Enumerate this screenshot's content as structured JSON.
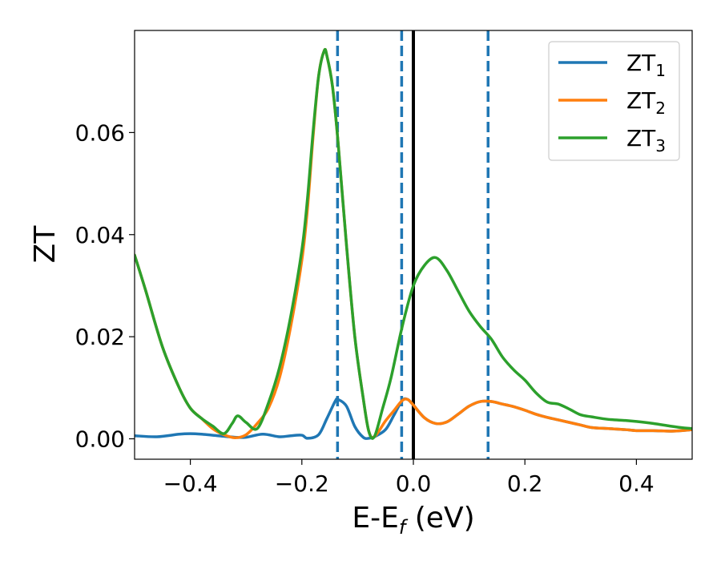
{
  "chart_data": {
    "type": "line",
    "xlabel": "E-E",
    "xlabel_sub": "f",
    "xlabel_unit": " (eV)",
    "ylabel": "ZT",
    "xlim": [
      -0.5,
      0.5
    ],
    "ylim": [
      -0.004,
      0.08
    ],
    "x_ticks": [
      -0.4,
      -0.2,
      0.0,
      0.2,
      0.4
    ],
    "x_tick_labels": [
      "−0.4",
      "−0.2",
      "0.0",
      "0.2",
      "0.4"
    ],
    "y_ticks": [
      0.0,
      0.02,
      0.04,
      0.06
    ],
    "y_tick_labels": [
      "0.00",
      "0.02",
      "0.04",
      "0.06"
    ],
    "grid": false,
    "legend_position": "top-right",
    "vertical_lines": [
      {
        "x": -0.136,
        "style": "dashed",
        "color": "#1f77b4"
      },
      {
        "x": -0.021,
        "style": "dashed",
        "color": "#1f77b4"
      },
      {
        "x": 0.0,
        "style": "solid",
        "color": "#000000"
      },
      {
        "x": 0.134,
        "style": "dashed",
        "color": "#1f77b4"
      }
    ],
    "series": [
      {
        "name": "ZT",
        "name_sub": "1",
        "color": "#1f77b4",
        "x": [
          -0.5,
          -0.46,
          -0.42,
          -0.4,
          -0.38,
          -0.35,
          -0.32,
          -0.3,
          -0.27,
          -0.24,
          -0.22,
          -0.2,
          -0.19,
          -0.17,
          -0.155,
          -0.14,
          -0.135,
          -0.12,
          -0.105,
          -0.09,
          -0.08,
          -0.07,
          -0.05,
          -0.035,
          -0.02,
          -0.01,
          0.0,
          0.02,
          0.04,
          0.06,
          0.08,
          0.1,
          0.12,
          0.14,
          0.16,
          0.18,
          0.2,
          0.22,
          0.24,
          0.26,
          0.28,
          0.3,
          0.32,
          0.35,
          0.38,
          0.4,
          0.43,
          0.46,
          0.48,
          0.5
        ],
        "y": [
          0.0006,
          0.0004,
          0.0009,
          0.001,
          0.0009,
          0.0006,
          0.0003,
          0.0003,
          0.0009,
          0.0004,
          0.0006,
          0.0007,
          0.0001,
          0.0008,
          0.004,
          0.0074,
          0.0077,
          0.0064,
          0.0024,
          0.0003,
          0.0001,
          0.0004,
          0.0018,
          0.0046,
          0.0075,
          0.0077,
          0.0066,
          0.0041,
          0.003,
          0.0033,
          0.0048,
          0.0064,
          0.0073,
          0.0073,
          0.0068,
          0.0063,
          0.0056,
          0.0048,
          0.0042,
          0.0037,
          0.0032,
          0.0027,
          0.0022,
          0.002,
          0.0018,
          0.0016,
          0.0016,
          0.0015,
          0.0016,
          0.0018
        ]
      },
      {
        "name": "ZT",
        "name_sub": "2",
        "color": "#ff7f0e",
        "x": [
          -0.5,
          -0.48,
          -0.45,
          -0.42,
          -0.4,
          -0.38,
          -0.36,
          -0.34,
          -0.32,
          -0.3,
          -0.28,
          -0.26,
          -0.24,
          -0.22,
          -0.2,
          -0.19,
          -0.18,
          -0.17,
          -0.16,
          -0.155,
          -0.145,
          -0.135,
          -0.12,
          -0.105,
          -0.09,
          -0.08,
          -0.07,
          -0.05,
          -0.035,
          -0.02,
          -0.01,
          0.0,
          0.02,
          0.04,
          0.06,
          0.08,
          0.1,
          0.12,
          0.14,
          0.16,
          0.18,
          0.2,
          0.22,
          0.24,
          0.26,
          0.28,
          0.3,
          0.32,
          0.35,
          0.38,
          0.4,
          0.43,
          0.46,
          0.48,
          0.5
        ],
        "y": [
          0.036,
          0.029,
          0.018,
          0.01,
          0.006,
          0.004,
          0.002,
          0.0008,
          0.0002,
          0.0008,
          0.003,
          0.006,
          0.012,
          0.022,
          0.035,
          0.045,
          0.059,
          0.071,
          0.076,
          0.075,
          0.069,
          0.058,
          0.038,
          0.02,
          0.008,
          0.0015,
          0.0004,
          0.0035,
          0.0055,
          0.0075,
          0.0077,
          0.0066,
          0.0041,
          0.003,
          0.0033,
          0.0048,
          0.0064,
          0.0073,
          0.0073,
          0.0068,
          0.0063,
          0.0056,
          0.0048,
          0.0042,
          0.0037,
          0.0032,
          0.0027,
          0.0022,
          0.002,
          0.0018,
          0.0016,
          0.0016,
          0.0015,
          0.0016,
          0.0018
        ]
      },
      {
        "name": "ZT",
        "name_sub": "3",
        "color": "#2ca02c",
        "x": [
          -0.5,
          -0.48,
          -0.45,
          -0.42,
          -0.4,
          -0.38,
          -0.36,
          -0.34,
          -0.325,
          -0.315,
          -0.3,
          -0.28,
          -0.26,
          -0.24,
          -0.22,
          -0.2,
          -0.19,
          -0.18,
          -0.17,
          -0.16,
          -0.155,
          -0.145,
          -0.135,
          -0.12,
          -0.105,
          -0.09,
          -0.08,
          -0.07,
          -0.055,
          -0.04,
          -0.02,
          0.0,
          0.02,
          0.04,
          0.06,
          0.08,
          0.1,
          0.12,
          0.14,
          0.16,
          0.18,
          0.2,
          0.22,
          0.24,
          0.26,
          0.28,
          0.3,
          0.32,
          0.35,
          0.38,
          0.4,
          0.43,
          0.46,
          0.48,
          0.5
        ],
        "y": [
          0.036,
          0.029,
          0.018,
          0.01,
          0.006,
          0.004,
          0.0025,
          0.001,
          0.003,
          0.0045,
          0.0032,
          0.002,
          0.007,
          0.014,
          0.024,
          0.037,
          0.047,
          0.06,
          0.071,
          0.076,
          0.075,
          0.069,
          0.058,
          0.038,
          0.02,
          0.008,
          0.0015,
          0.0004,
          0.006,
          0.012,
          0.022,
          0.03,
          0.034,
          0.0355,
          0.033,
          0.029,
          0.025,
          0.022,
          0.0195,
          0.016,
          0.0135,
          0.0115,
          0.009,
          0.0072,
          0.0068,
          0.0058,
          0.0047,
          0.0043,
          0.0038,
          0.0036,
          0.0034,
          0.003,
          0.0025,
          0.0022,
          0.002
        ]
      }
    ]
  }
}
